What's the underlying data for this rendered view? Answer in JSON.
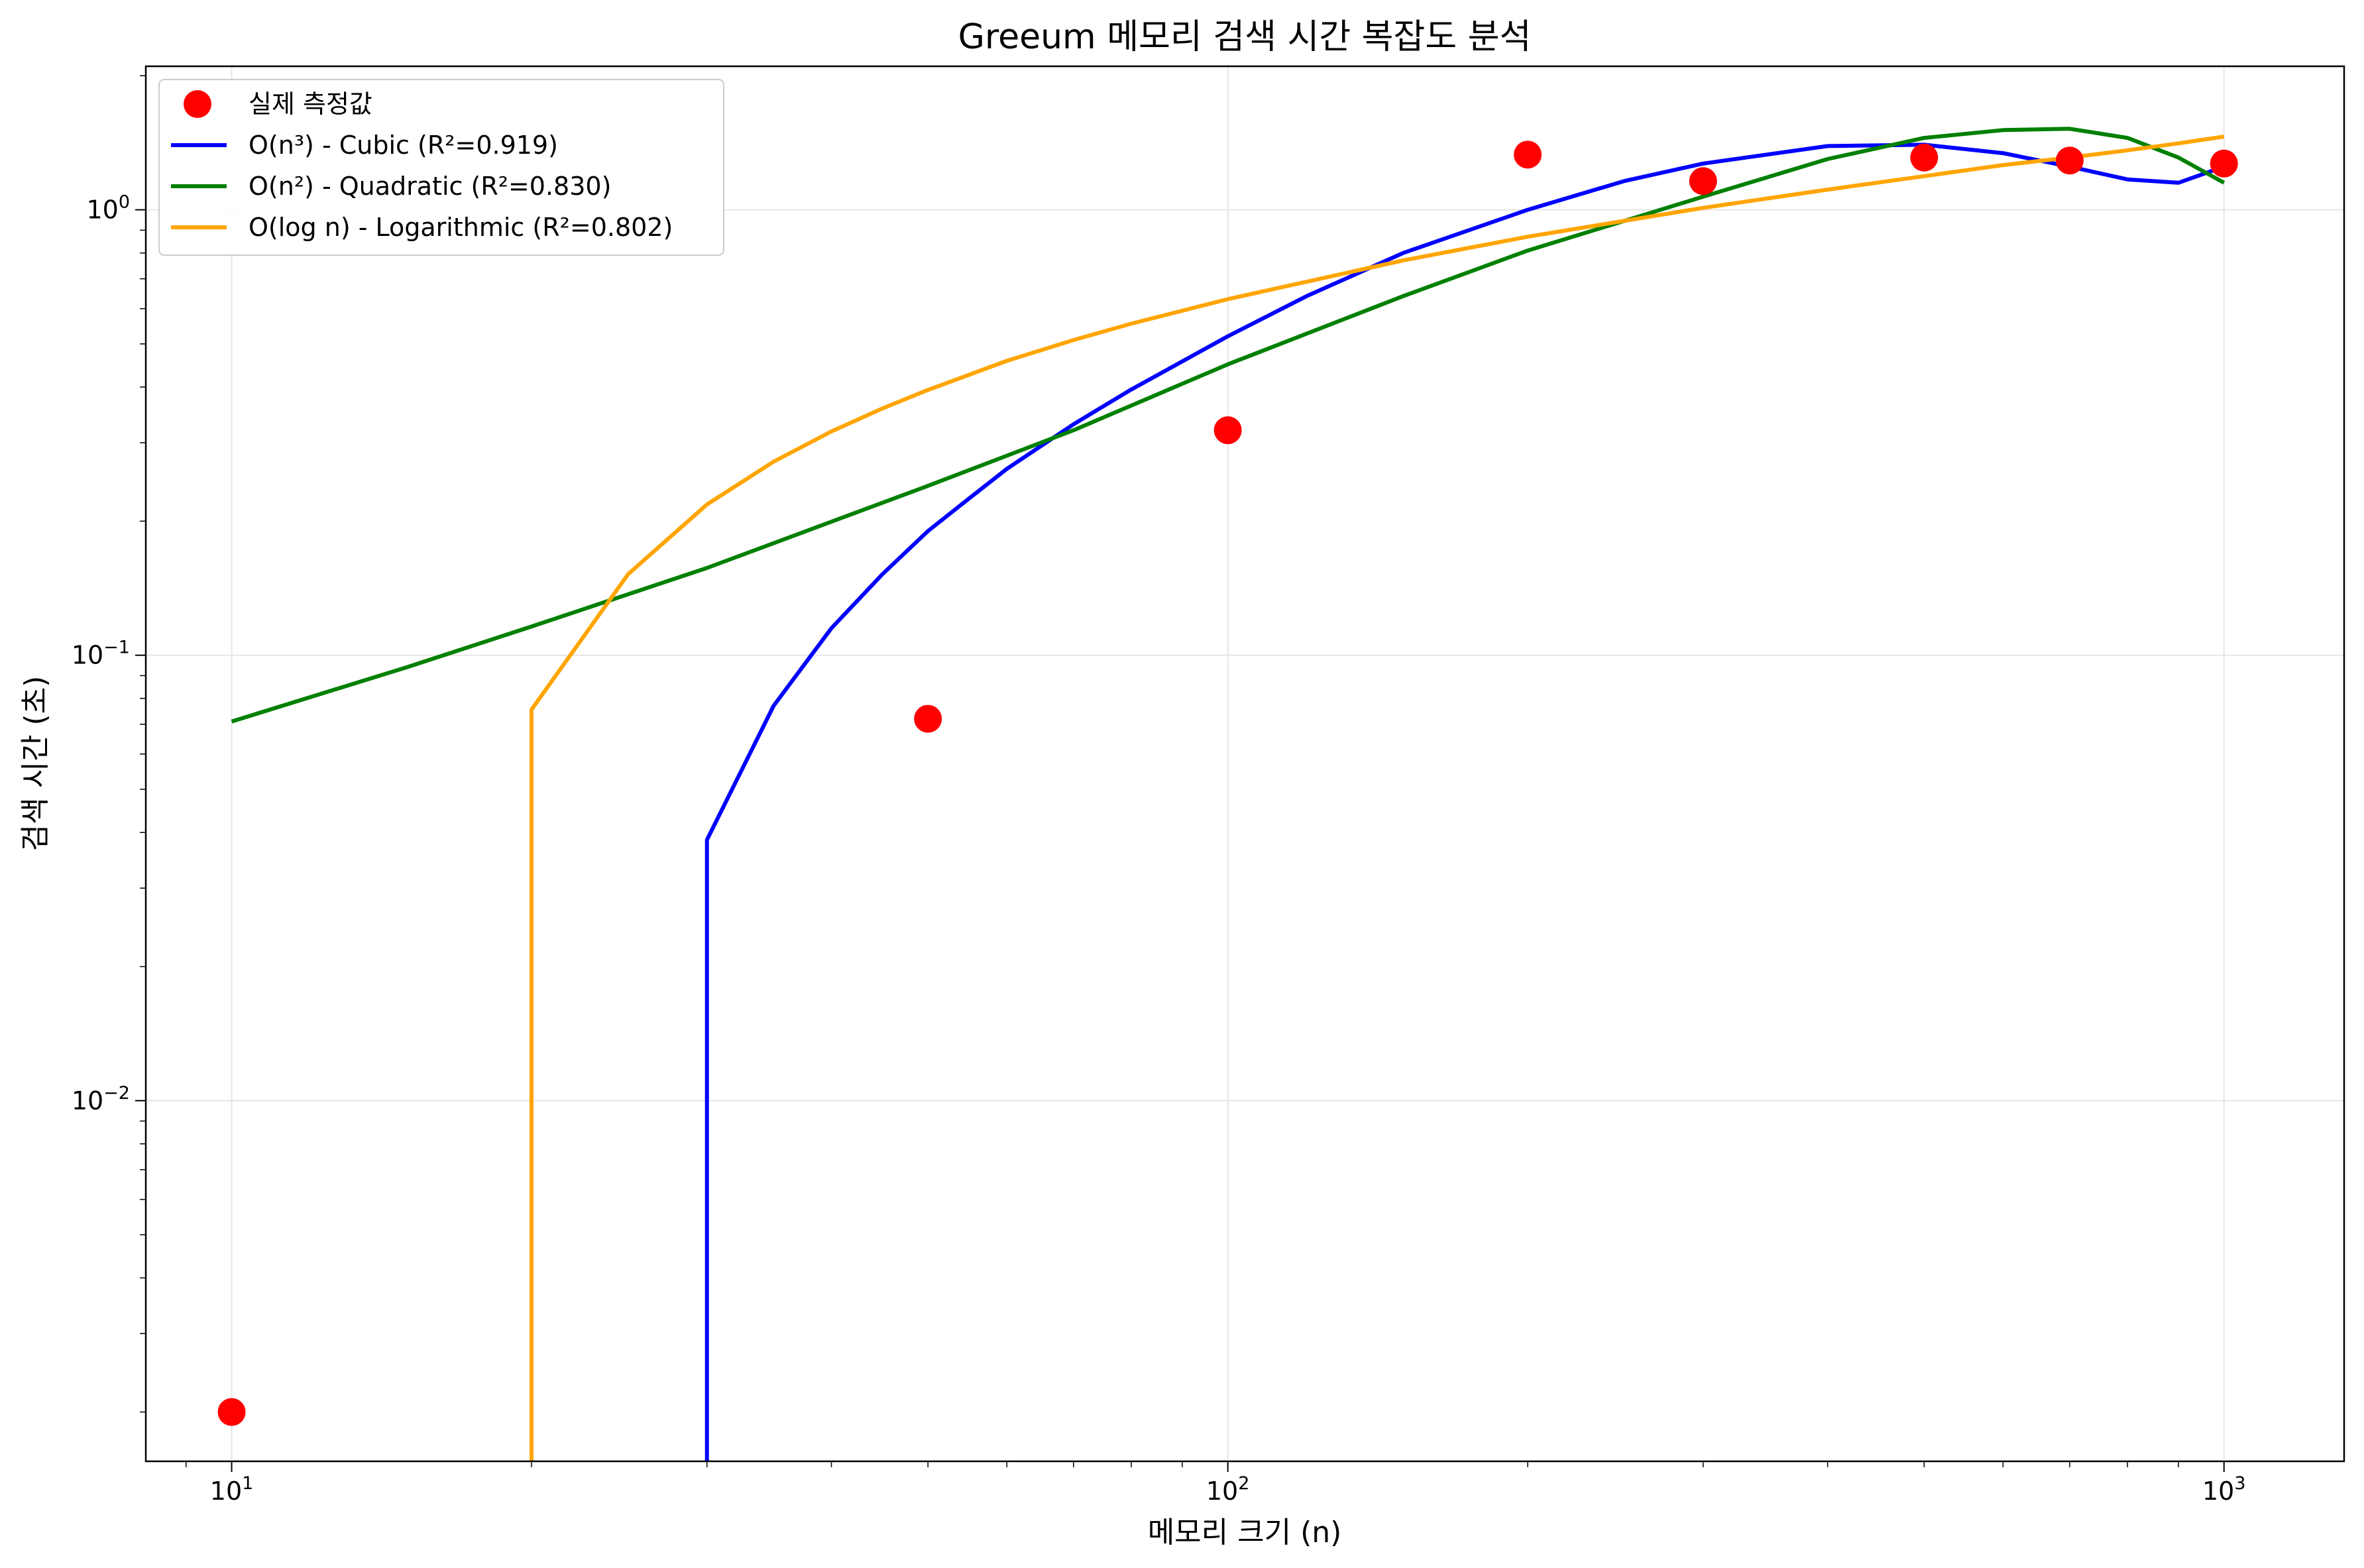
{
  "chart_data": {
    "type": "line",
    "title": "Greeum 메모리 검색 시간 복잡도 분석",
    "xlabel": "메모리 크기 (n)",
    "ylabel": "검색 시간 (초)",
    "xscale": "log",
    "yscale": "log",
    "xlim": [
      8.2,
      1320
    ],
    "ylim": [
      0.00155,
      2.1
    ],
    "grid": true,
    "legend_position": "top-left",
    "x_ticks": [
      {
        "value": 10,
        "base": "10",
        "exp": "1"
      },
      {
        "value": 100,
        "base": "10",
        "exp": "2"
      },
      {
        "value": 1000,
        "base": "10",
        "exp": "3"
      }
    ],
    "y_ticks": [
      {
        "value": 0.01,
        "base": "10",
        "exp": "−2"
      },
      {
        "value": 0.1,
        "base": "10",
        "exp": "−1"
      },
      {
        "value": 1,
        "base": "10",
        "exp": "0"
      }
    ],
    "scatter": {
      "name": "실제 측정값",
      "color": "#ff0000",
      "x": [
        10,
        50,
        100,
        200,
        300,
        500,
        700,
        1000
      ],
      "y": [
        0.002,
        0.072,
        0.32,
        1.33,
        1.16,
        1.31,
        1.29,
        1.27
      ]
    },
    "series": [
      {
        "name": "O(n³) - Cubic (R²=0.919)",
        "color": "#0000ff",
        "x": [
          30,
          30,
          35,
          40,
          45,
          50,
          55,
          60,
          70,
          80,
          100,
          120,
          150,
          200,
          250,
          300,
          400,
          500,
          600,
          700,
          800,
          900,
          1000
        ],
        "y": [
          0.0015,
          0.0385,
          0.077,
          0.115,
          0.152,
          0.19,
          0.225,
          0.262,
          0.33,
          0.395,
          0.52,
          0.64,
          0.8,
          1.0,
          1.16,
          1.27,
          1.39,
          1.4,
          1.34,
          1.25,
          1.17,
          1.15,
          1.25
        ]
      },
      {
        "name": "O(n²) - Quadratic (R²=0.830)",
        "color": "#008000",
        "x": [
          10,
          15,
          20,
          30,
          50,
          70,
          100,
          150,
          200,
          300,
          400,
          500,
          600,
          700,
          800,
          900,
          1000
        ],
        "y": [
          0.071,
          0.094,
          0.116,
          0.157,
          0.24,
          0.32,
          0.45,
          0.64,
          0.81,
          1.07,
          1.3,
          1.45,
          1.51,
          1.52,
          1.45,
          1.31,
          1.15
        ]
      },
      {
        "name": "O(log n) - Logarithmic (R²=0.802)",
        "color": "#ffa500",
        "x": [
          20,
          20,
          25,
          30,
          35,
          40,
          45,
          50,
          60,
          70,
          80,
          100,
          150,
          200,
          300,
          400,
          500,
          600,
          700,
          800,
          900,
          1000
        ],
        "y": [
          0.0015,
          0.0755,
          0.152,
          0.218,
          0.272,
          0.318,
          0.358,
          0.394,
          0.458,
          0.51,
          0.555,
          0.63,
          0.77,
          0.87,
          1.01,
          1.11,
          1.19,
          1.26,
          1.31,
          1.36,
          1.41,
          1.46
        ]
      }
    ]
  }
}
